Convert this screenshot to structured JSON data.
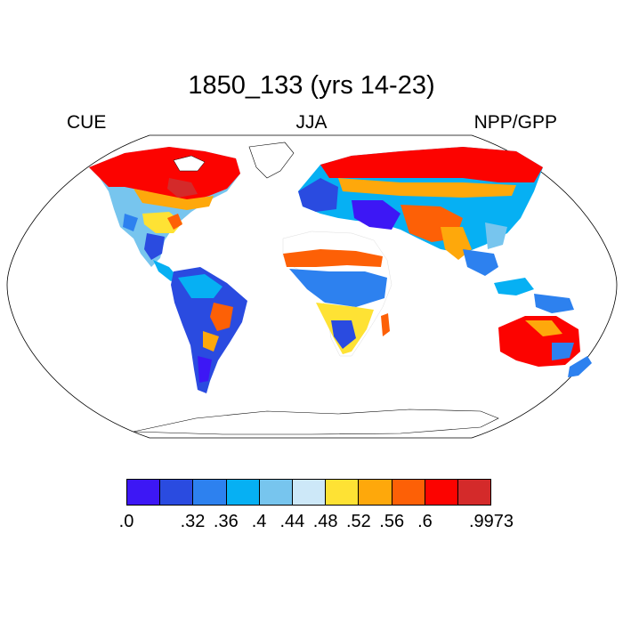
{
  "title": "1850_133 (yrs 14-23)",
  "left_label": "CUE",
  "center_label": "JJA",
  "right_label": "NPP/GPP",
  "colorbar": {
    "colors": [
      "#3d17f5",
      "#2a4be0",
      "#2d81ef",
      "#06b0f3",
      "#77c5ee",
      "#cde8f8",
      "#fee234",
      "#fea80b",
      "#fd6006",
      "#fc0300",
      "#d42a2a"
    ],
    "tick_labels": [
      ".0",
      ".32",
      ".36",
      ".4",
      ".44",
      ".48",
      ".52",
      ".56",
      ".6",
      ".9973"
    ]
  }
}
